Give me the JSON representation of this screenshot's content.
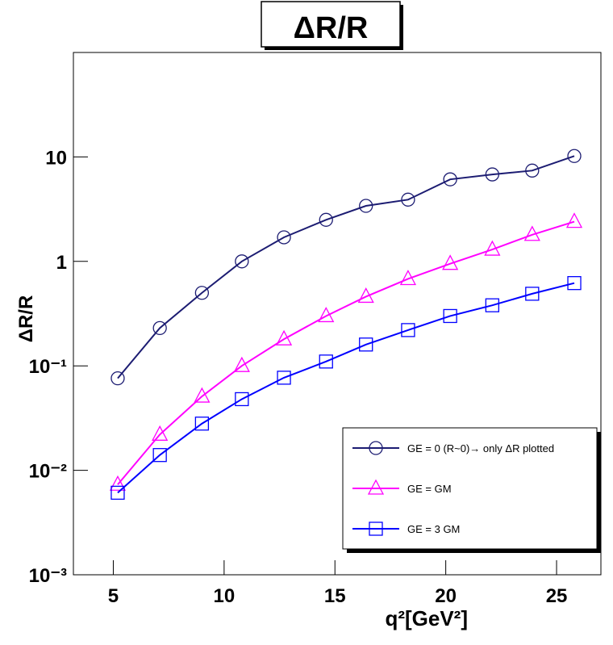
{
  "chart_data": {
    "type": "line",
    "title": "ΔR/R",
    "x_label": "q²[GeV²]",
    "y_label": "ΔR/R",
    "xlim": [
      3.2,
      27.0
    ],
    "xticks": [
      5,
      10,
      15,
      20,
      25
    ],
    "ylim": [
      0.001,
      100
    ],
    "log_y": true,
    "yticks": [
      {
        "value": 0.001,
        "label": "10⁻³"
      },
      {
        "value": 0.01,
        "label": "10⁻²"
      },
      {
        "value": 0.1,
        "label": "10⁻¹"
      },
      1,
      10
    ],
    "x": [
      5.2,
      7.1,
      9.0,
      10.8,
      12.7,
      14.6,
      16.4,
      18.3,
      20.2,
      22.1,
      23.9,
      25.8
    ],
    "series": [
      {
        "name": "GE = 0 (R~0)→ only ΔR plotted",
        "color": "#1c1c72",
        "marker": "circle",
        "values": [
          0.076,
          0.23,
          0.5,
          1.0,
          1.7,
          2.5,
          3.4,
          3.9,
          6.1,
          6.8,
          7.4,
          10.2
        ]
      },
      {
        "name": "GE = GM",
        "color": "#ff00ff",
        "marker": "triangle",
        "values": [
          0.0073,
          0.022,
          0.051,
          0.1,
          0.18,
          0.3,
          0.46,
          0.68,
          0.95,
          1.3,
          1.8,
          2.4
        ]
      },
      {
        "name": "GE = 3 GM",
        "color": "#0000ff",
        "marker": "square",
        "values": [
          0.0061,
          0.014,
          0.028,
          0.048,
          0.077,
          0.11,
          0.16,
          0.22,
          0.3,
          0.38,
          0.49,
          0.62
        ]
      }
    ],
    "legend": "lower-right"
  }
}
